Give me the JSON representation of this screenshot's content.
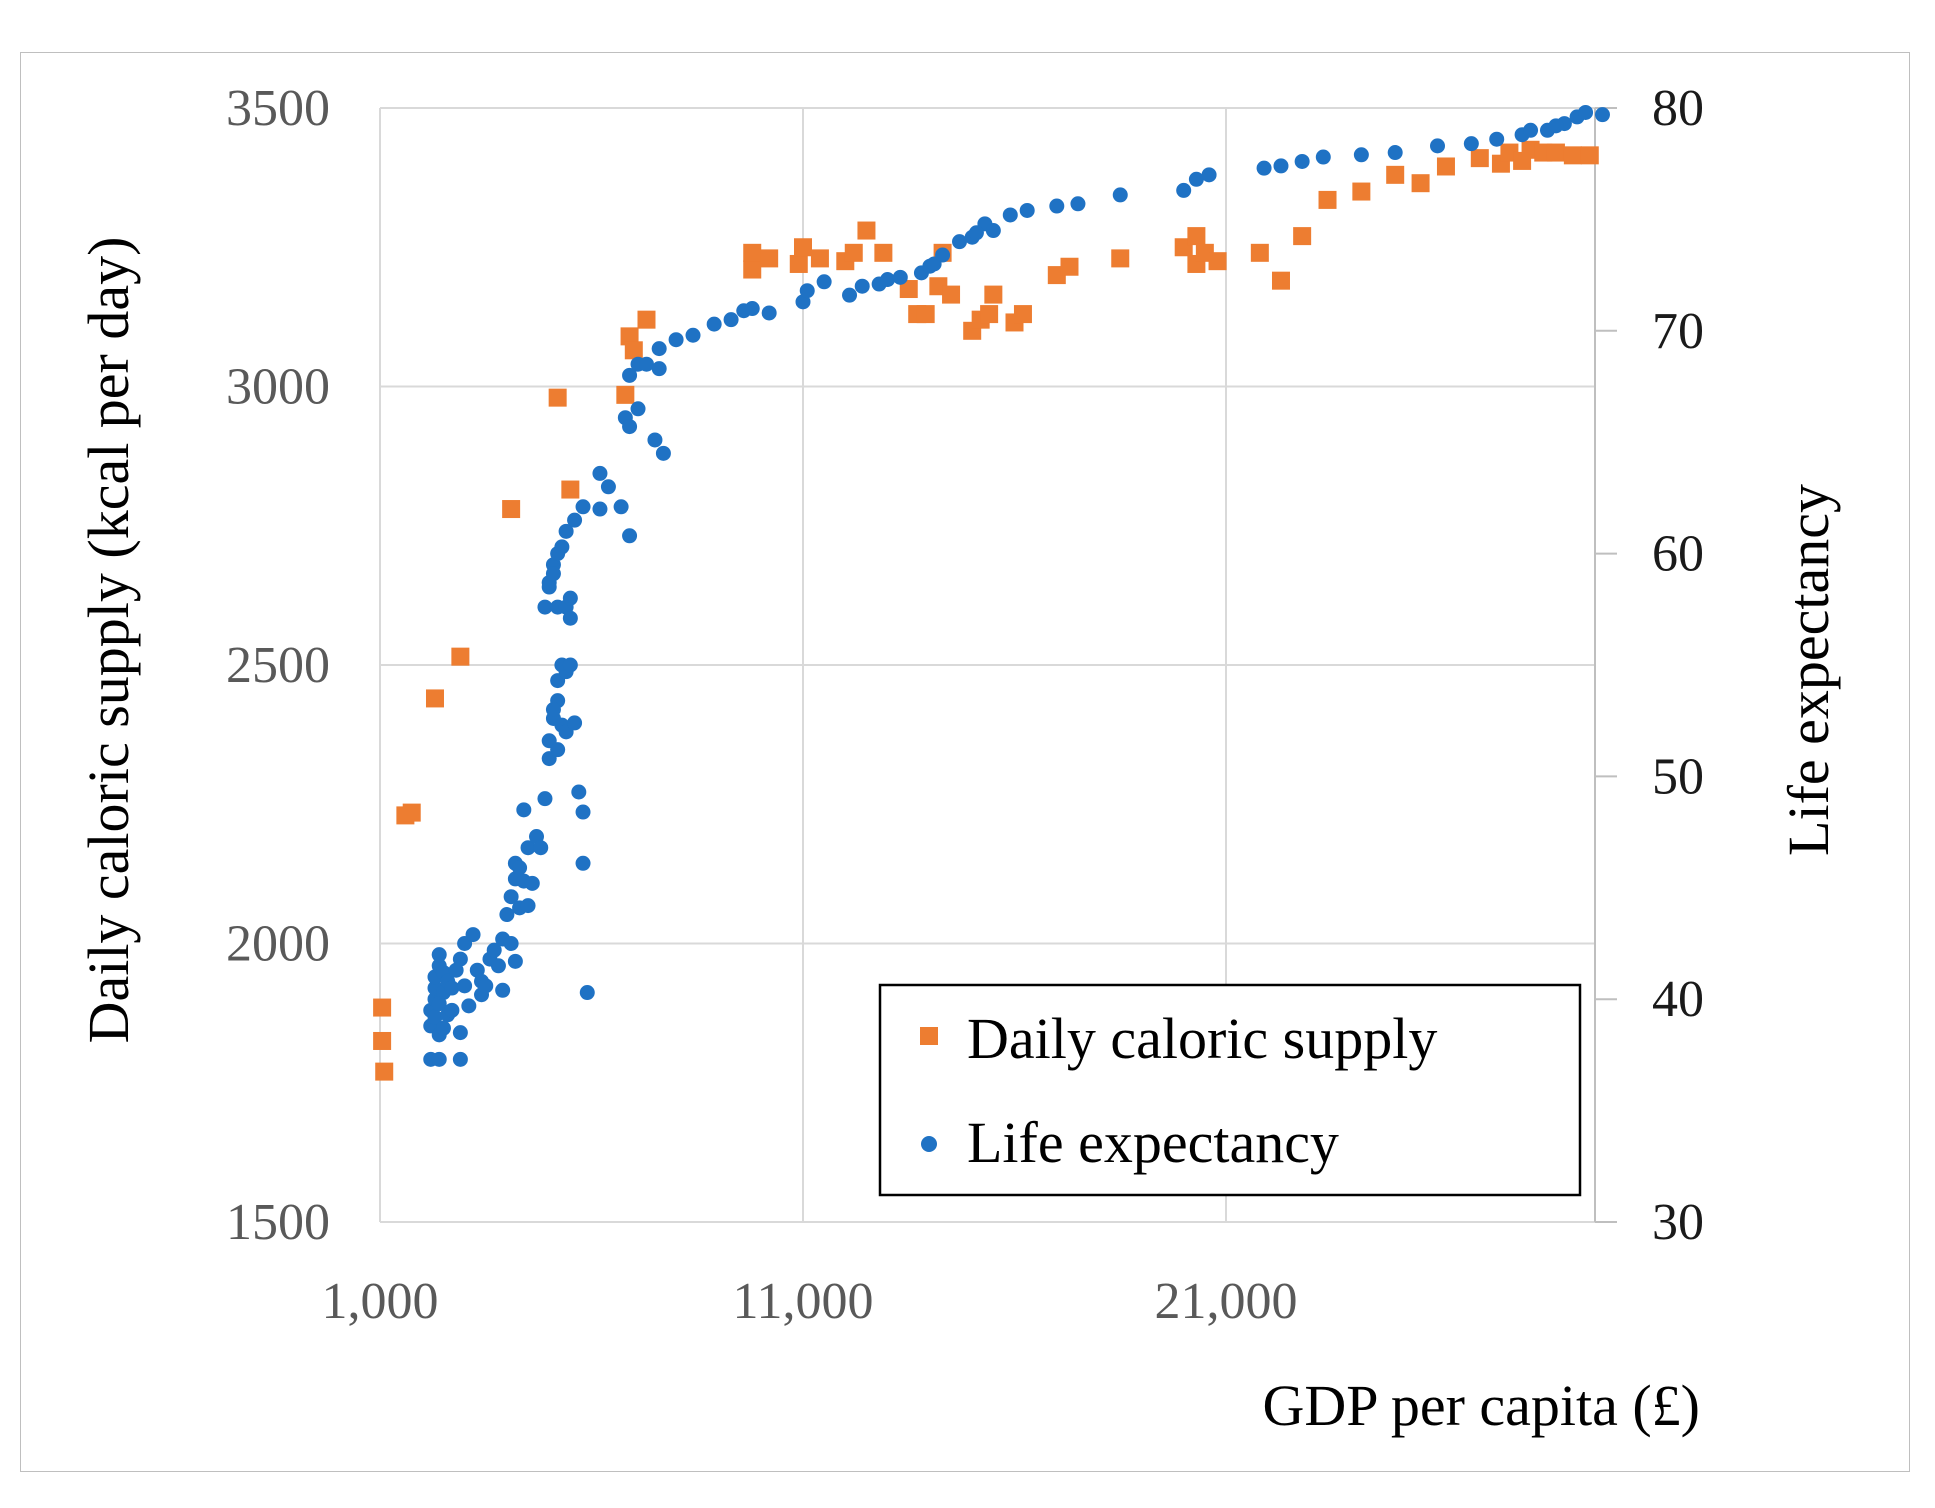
{
  "chart_data": {
    "type": "scatter",
    "title": "",
    "xlabel": "GDP per capita (£)",
    "ylabel_left": "Daily caloric supply (kcal per day)",
    "ylabel_right": "Life expectancy",
    "xlim": [
      1000,
      30000
    ],
    "ylim_left": [
      1500,
      3500
    ],
    "ylim_right": [
      30,
      80
    ],
    "x_ticks": [
      1000,
      11000,
      21000
    ],
    "x_tick_labels": [
      "1,000",
      "11,000",
      "21,000"
    ],
    "y_left_ticks": [
      1500,
      2000,
      2500,
      3000,
      3500
    ],
    "y_left_tick_labels": [
      "1500",
      "2000",
      "2500",
      "3000",
      "3500"
    ],
    "y_right_ticks": [
      30,
      40,
      50,
      60,
      70,
      80
    ],
    "y_right_tick_labels": [
      "30",
      "40",
      "50",
      "60",
      "70",
      "80"
    ],
    "grid": true,
    "legend_position": "bottom-right",
    "series": [
      {
        "name": "Daily caloric supply",
        "axis": "left",
        "color": "#ED7D31",
        "marker": "square",
        "points": [
          [
            1050,
            1885
          ],
          [
            1050,
            1825
          ],
          [
            1100,
            1770
          ],
          [
            1600,
            2230
          ],
          [
            1750,
            2235
          ],
          [
            2300,
            2440
          ],
          [
            2900,
            2515
          ],
          [
            4100,
            2780
          ],
          [
            5200,
            2980
          ],
          [
            5500,
            2815
          ],
          [
            6800,
            2985
          ],
          [
            6900,
            3090
          ],
          [
            7000,
            3065
          ],
          [
            7300,
            3120
          ],
          [
            9800,
            3210
          ],
          [
            9800,
            3240
          ],
          [
            10200,
            3230
          ],
          [
            10900,
            3220
          ],
          [
            11000,
            3250
          ],
          [
            11400,
            3230
          ],
          [
            12000,
            3225
          ],
          [
            12200,
            3240
          ],
          [
            12500,
            3280
          ],
          [
            12900,
            3240
          ],
          [
            13500,
            3175
          ],
          [
            13700,
            3130
          ],
          [
            13900,
            3130
          ],
          [
            14200,
            3180
          ],
          [
            14300,
            3240
          ],
          [
            14500,
            3165
          ],
          [
            15000,
            3100
          ],
          [
            15200,
            3120
          ],
          [
            15400,
            3130
          ],
          [
            15500,
            3165
          ],
          [
            16000,
            3115
          ],
          [
            16200,
            3130
          ],
          [
            17000,
            3200
          ],
          [
            17300,
            3215
          ],
          [
            18500,
            3230
          ],
          [
            20000,
            3250
          ],
          [
            20300,
            3220
          ],
          [
            20300,
            3270
          ],
          [
            20500,
            3240
          ],
          [
            20800,
            3225
          ],
          [
            21800,
            3240
          ],
          [
            22300,
            3190
          ],
          [
            22800,
            3270
          ],
          [
            23400,
            3335
          ],
          [
            24200,
            3350
          ],
          [
            25000,
            3380
          ],
          [
            25600,
            3365
          ],
          [
            26200,
            3395
          ],
          [
            27000,
            3410
          ],
          [
            27500,
            3400
          ],
          [
            27700,
            3420
          ],
          [
            28000,
            3405
          ],
          [
            28200,
            3425
          ],
          [
            28500,
            3420
          ],
          [
            28800,
            3420
          ],
          [
            29200,
            3415
          ],
          [
            29600,
            3415
          ]
        ]
      },
      {
        "name": "Life expectancy",
        "axis": "right",
        "color": "#1F72C4",
        "marker": "circle",
        "points": [
          [
            2200,
            39.5
          ],
          [
            2200,
            38.8
          ],
          [
            2300,
            40
          ],
          [
            2300,
            40.5
          ],
          [
            2300,
            41
          ],
          [
            2400,
            41.5
          ],
          [
            2400,
            42
          ],
          [
            2500,
            41.2
          ],
          [
            2500,
            40.3
          ],
          [
            2600,
            40.8
          ],
          [
            2300,
            39.2
          ],
          [
            2400,
            39.8
          ],
          [
            2600,
            39.3
          ],
          [
            2700,
            40.5
          ],
          [
            2800,
            41.3
          ],
          [
            2900,
            41.8
          ],
          [
            3000,
            40.6
          ],
          [
            3100,
            39.7
          ],
          [
            2700,
            39.5
          ],
          [
            2400,
            38.4
          ],
          [
            2500,
            38.7
          ],
          [
            2200,
            37.3
          ],
          [
            2400,
            37.3
          ],
          [
            2900,
            37.3
          ],
          [
            2900,
            38.5
          ],
          [
            3000,
            42.5
          ],
          [
            3200,
            42.9
          ],
          [
            3300,
            41.3
          ],
          [
            3400,
            40.2
          ],
          [
            3400,
            40.8
          ],
          [
            3500,
            40.6
          ],
          [
            3600,
            41.8
          ],
          [
            3700,
            42.2
          ],
          [
            3800,
            41.5
          ],
          [
            3900,
            40.4
          ],
          [
            3900,
            42.7
          ],
          [
            4000,
            43.8
          ],
          [
            4100,
            44.6
          ],
          [
            4200,
            45.4
          ],
          [
            4200,
            46.1
          ],
          [
            4300,
            45.9
          ],
          [
            4400,
            45.3
          ],
          [
            4500,
            46.8
          ],
          [
            4600,
            45.2
          ],
          [
            4300,
            44.1
          ],
          [
            4100,
            42.5
          ],
          [
            4200,
            41.7
          ],
          [
            4500,
            44.2
          ],
          [
            4400,
            48.5
          ],
          [
            4700,
            47.3
          ],
          [
            4800,
            46.8
          ],
          [
            4900,
            49.0
          ],
          [
            5000,
            50.8
          ],
          [
            5000,
            51.6
          ],
          [
            5100,
            52.6
          ],
          [
            5200,
            53.4
          ],
          [
            5200,
            54.3
          ],
          [
            5300,
            55.0
          ],
          [
            5400,
            54.7
          ],
          [
            5500,
            55.0
          ],
          [
            5100,
            53.0
          ],
          [
            5200,
            51.2
          ],
          [
            5300,
            52.3
          ],
          [
            5400,
            52.0
          ],
          [
            5600,
            52.4
          ],
          [
            5700,
            49.3
          ],
          [
            5800,
            48.4
          ],
          [
            5800,
            46.1
          ],
          [
            5900,
            40.3
          ],
          [
            4900,
            57.6
          ],
          [
            5000,
            58.5
          ],
          [
            5100,
            59.5
          ],
          [
            5200,
            60.0
          ],
          [
            5300,
            60.3
          ],
          [
            5200,
            57.6
          ],
          [
            5400,
            57.6
          ],
          [
            5500,
            58.0
          ],
          [
            5400,
            61.0
          ],
          [
            5500,
            57.1
          ],
          [
            5600,
            61.5
          ],
          [
            5000,
            58.7
          ],
          [
            5100,
            59.1
          ],
          [
            5800,
            62.1
          ],
          [
            6200,
            62.0
          ],
          [
            6400,
            63.0
          ],
          [
            6700,
            62.1
          ],
          [
            6900,
            60.8
          ],
          [
            6200,
            63.6
          ],
          [
            6800,
            66.1
          ],
          [
            6900,
            65.7
          ],
          [
            7100,
            66.5
          ],
          [
            7500,
            65.1
          ],
          [
            7700,
            64.5
          ],
          [
            6900,
            68.0
          ],
          [
            7100,
            68.5
          ],
          [
            7300,
            68.5
          ],
          [
            7600,
            68.3
          ],
          [
            7600,
            69.2
          ],
          [
            8000,
            69.6
          ],
          [
            8400,
            69.8
          ],
          [
            8900,
            70.3
          ],
          [
            9300,
            70.5
          ],
          [
            9600,
            70.9
          ],
          [
            9800,
            71.0
          ],
          [
            10200,
            70.8
          ],
          [
            11000,
            71.3
          ],
          [
            11100,
            71.8
          ],
          [
            11500,
            72.2
          ],
          [
            12100,
            71.6
          ],
          [
            12400,
            72.0
          ],
          [
            12800,
            72.1
          ],
          [
            13000,
            72.3
          ],
          [
            13300,
            72.4
          ],
          [
            13800,
            72.6
          ],
          [
            14000,
            72.9
          ],
          [
            14100,
            73.0
          ],
          [
            14300,
            73.4
          ],
          [
            14700,
            74.0
          ],
          [
            15000,
            74.2
          ],
          [
            15300,
            74.8
          ],
          [
            15100,
            74.4
          ],
          [
            15500,
            74.5
          ],
          [
            15900,
            75.2
          ],
          [
            16300,
            75.4
          ],
          [
            17000,
            75.6
          ],
          [
            17500,
            75.7
          ],
          [
            18500,
            76.1
          ],
          [
            20000,
            76.3
          ],
          [
            20300,
            76.8
          ],
          [
            20600,
            77.0
          ],
          [
            21900,
            77.3
          ],
          [
            22300,
            77.4
          ],
          [
            22800,
            77.6
          ],
          [
            23300,
            77.8
          ],
          [
            24200,
            77.9
          ],
          [
            25000,
            78.0
          ],
          [
            26000,
            78.3
          ],
          [
            26800,
            78.4
          ],
          [
            27400,
            78.6
          ],
          [
            28000,
            78.8
          ],
          [
            28600,
            79.0
          ],
          [
            29000,
            79.3
          ],
          [
            29300,
            79.6
          ],
          [
            29500,
            79.8
          ],
          [
            29900,
            79.7
          ],
          [
            28200,
            79.0
          ],
          [
            28800,
            79.2
          ]
        ]
      }
    ]
  }
}
